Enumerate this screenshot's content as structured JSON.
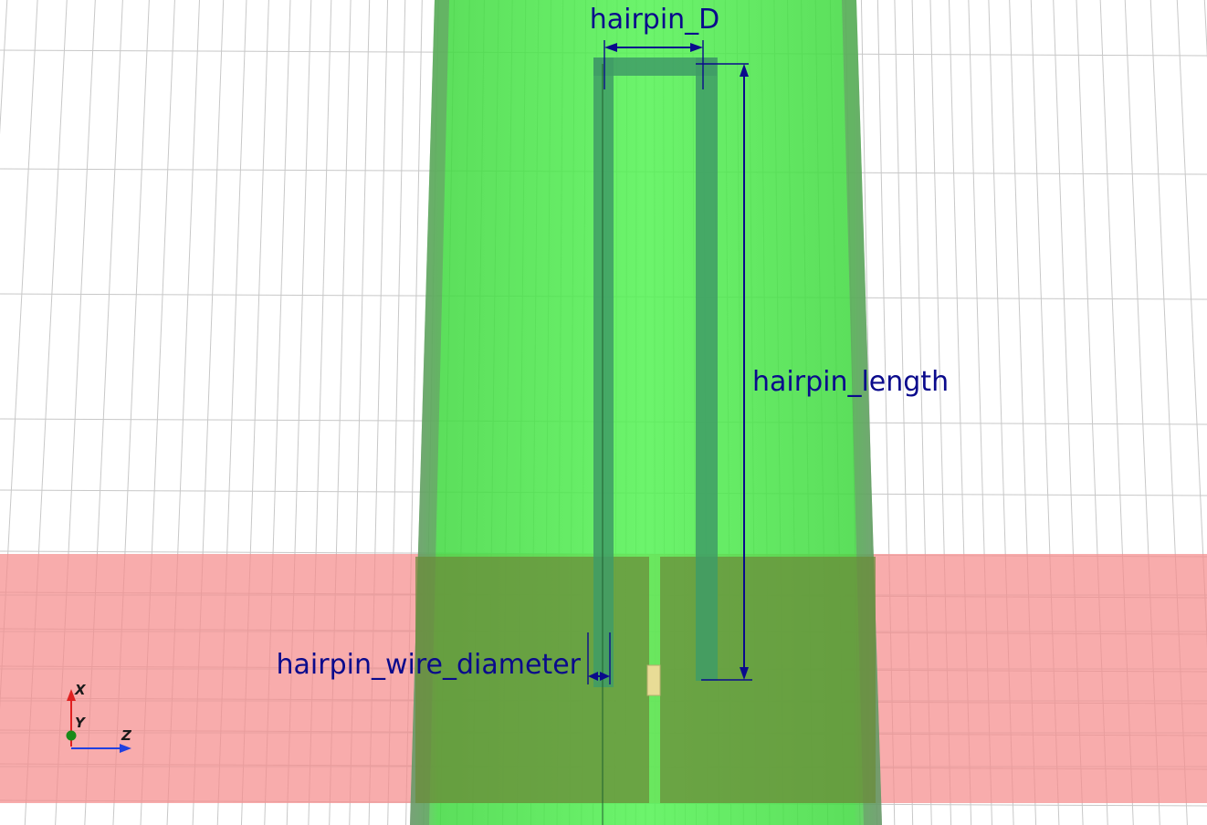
{
  "dimensions": {
    "hairpin_d": "hairpin_D",
    "hairpin_length": "hairpin_length",
    "hairpin_wire_diameter": "hairpin_wire_diameter"
  },
  "axes": {
    "x": "X",
    "y": "Y",
    "z": "Z"
  },
  "colors": {
    "dimension": "#0a0a8c",
    "outer_cylinder": "#3ee63e",
    "outer_cylinder_edge": "#6b8f6b",
    "substrate": "#f58c8c",
    "ground_plane": "#6b8a3a",
    "hairpin_wire": "#4aa36a",
    "feed_port": "#e8dc96",
    "axis_x": "#e02020",
    "axis_y": "#1a8a1a",
    "axis_z": "#2040e0",
    "grid": "#c8c8c8"
  }
}
